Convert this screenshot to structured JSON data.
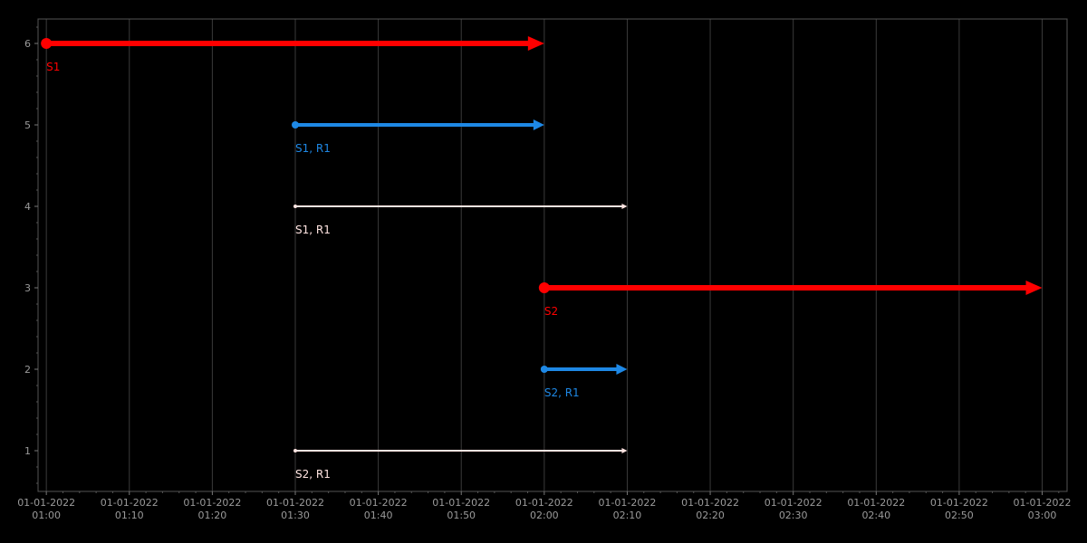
{
  "chart_data": {
    "type": "timeline",
    "x_axis": {
      "ticks": [
        {
          "value": "2022-01-01T01:00",
          "date": "01-01-2022",
          "time": "01:00"
        },
        {
          "value": "2022-01-01T01:10",
          "date": "01-01-2022",
          "time": "01:10"
        },
        {
          "value": "2022-01-01T01:20",
          "date": "01-01-2022",
          "time": "01:20"
        },
        {
          "value": "2022-01-01T01:30",
          "date": "01-01-2022",
          "time": "01:30"
        },
        {
          "value": "2022-01-01T01:40",
          "date": "01-01-2022",
          "time": "01:40"
        },
        {
          "value": "2022-01-01T01:50",
          "date": "01-01-2022",
          "time": "01:50"
        },
        {
          "value": "2022-01-01T02:00",
          "date": "01-01-2022",
          "time": "02:00"
        },
        {
          "value": "2022-01-01T02:10",
          "date": "01-01-2022",
          "time": "02:10"
        },
        {
          "value": "2022-01-01T02:20",
          "date": "01-01-2022",
          "time": "02:20"
        },
        {
          "value": "2022-01-01T02:30",
          "date": "01-01-2022",
          "time": "02:30"
        },
        {
          "value": "2022-01-01T02:40",
          "date": "01-01-2022",
          "time": "02:40"
        },
        {
          "value": "2022-01-01T02:50",
          "date": "01-01-2022",
          "time": "02:50"
        },
        {
          "value": "2022-01-01T03:00",
          "date": "01-01-2022",
          "time": "03:00"
        }
      ],
      "range": [
        "2022-01-01T00:59",
        "2022-01-01T03:03"
      ]
    },
    "y_axis": {
      "ticks": [
        "1",
        "2",
        "3",
        "4",
        "5",
        "6"
      ],
      "range": [
        0.5,
        6.3
      ]
    },
    "grid": "vertical",
    "segments": [
      {
        "y": 6,
        "start": "2022-01-01T01:00",
        "end": "2022-01-01T02:00",
        "label": "S1",
        "color": "#ff0000",
        "weight": "thick"
      },
      {
        "y": 5,
        "start": "2022-01-01T01:30",
        "end": "2022-01-01T02:00",
        "label": "S1, R1",
        "color": "#1e88e5",
        "weight": "medium"
      },
      {
        "y": 4,
        "start": "2022-01-01T01:30",
        "end": "2022-01-01T02:10",
        "label": "S1, R1",
        "color": "#ffe4e1",
        "weight": "thin"
      },
      {
        "y": 3,
        "start": "2022-01-01T02:00",
        "end": "2022-01-01T03:00",
        "label": "S2",
        "color": "#ff0000",
        "weight": "thick"
      },
      {
        "y": 2,
        "start": "2022-01-01T02:00",
        "end": "2022-01-01T02:10",
        "label": "S2, R1",
        "color": "#1e88e5",
        "weight": "medium"
      },
      {
        "y": 1,
        "start": "2022-01-01T01:30",
        "end": "2022-01-01T02:10",
        "label": "S2, R1",
        "color": "#ffe4e1",
        "weight": "thin"
      }
    ]
  }
}
